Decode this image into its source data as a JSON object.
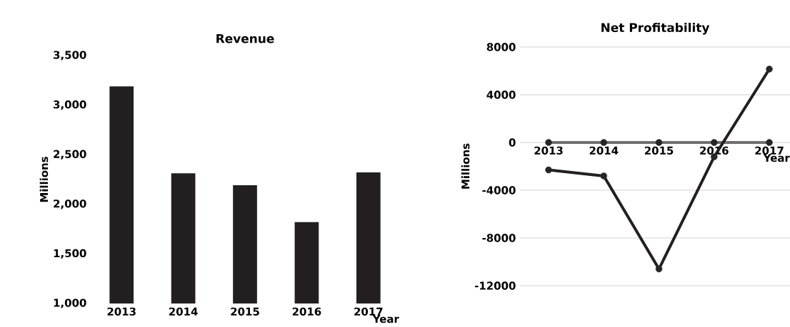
{
  "chart_data": [
    {
      "type": "bar",
      "title": "Revenue",
      "ylabel": "Millions",
      "xlabel": "Year",
      "categories": [
        "2013",
        "2014",
        "2015",
        "2016",
        "2017"
      ],
      "values": [
        3190,
        2313,
        2192,
        1820,
        2322
      ],
      "color": "#231f20",
      "ylim": [
        1000,
        3500
      ],
      "yticks": [
        {
          "value": 1000,
          "label": "1,000"
        },
        {
          "value": 1500,
          "label": "1,500"
        },
        {
          "value": 2000,
          "label": "2,000"
        },
        {
          "value": 2500,
          "label": "2,500"
        },
        {
          "value": 3000,
          "label": "3,000"
        },
        {
          "value": 3500,
          "label": "3,500"
        }
      ]
    },
    {
      "type": "line",
      "title": "Net Profitability",
      "ylabel": "Millions",
      "xlabel": "Year",
      "categories": [
        "2013",
        "2014",
        "2015",
        "2016",
        "2017"
      ],
      "series": [
        {
          "color": "#6f6f6f",
          "values": [
            0,
            0,
            0,
            0,
            0
          ]
        },
        {
          "color": "#231f20",
          "values": [
            -2300,
            -2800,
            -10600,
            -1200,
            6150
          ]
        }
      ],
      "ylim": [
        -12000,
        8000
      ],
      "yticks": [
        -12000,
        -8000,
        -4000,
        0,
        4000,
        8000
      ],
      "grid": "y",
      "marker": "circle"
    }
  ]
}
